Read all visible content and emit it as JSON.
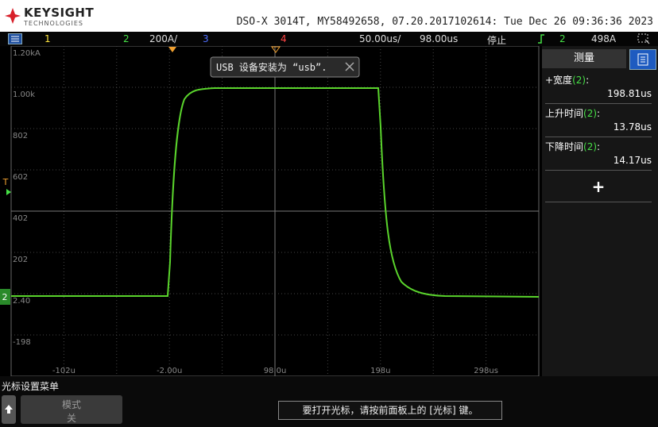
{
  "header": {
    "brand": "KEYSIGHT",
    "brand_sub": "TECHNOLOGIES",
    "instrument": "DSO-X 3014T, MY58492658, 07.20.2017102614: Tue Dec 26 09:36:36 2023"
  },
  "status_bar": {
    "ch1": "1",
    "ch2": "2",
    "ch2_scale": "200A/",
    "ch3": "3",
    "ch4": "4",
    "timebase": "50.00us/",
    "delay": "98.00us",
    "run_state": "停止",
    "trigger_source": "2",
    "trigger_level": "498A"
  },
  "y_axis_labels": [
    "1.20kA",
    "1.00k",
    "802",
    "602",
    "402",
    "202",
    "2.40",
    "-198"
  ],
  "x_axis_labels": [
    "-102u",
    "-2.00u",
    "98.0u",
    "198u",
    "298us"
  ],
  "markers": {
    "trigger": "T",
    "ground": "2"
  },
  "popup": "USB 设备安装为 “usb”.",
  "measurements": {
    "title": "测量",
    "add": "+",
    "items": [
      {
        "label": "+宽度",
        "channel": "(2)",
        "suffix": ":",
        "value": "198.81us"
      },
      {
        "label": "上升时间",
        "channel": "(2)",
        "suffix": ":",
        "value": "13.78us"
      },
      {
        "label": "下降时间",
        "channel": "(2)",
        "suffix": ":",
        "value": "14.17us"
      }
    ]
  },
  "softkey_menu": {
    "title": "光标设置菜单",
    "mode_label": "模式",
    "mode_value": "关"
  },
  "message": "要打开光标，请按前面板上的 [光标] 键。"
}
